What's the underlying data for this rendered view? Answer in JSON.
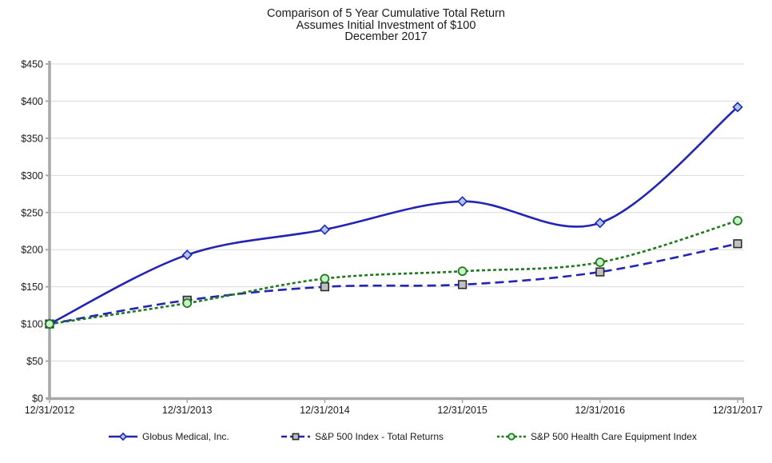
{
  "title": {
    "line1": "Comparison of 5 Year Cumulative Total Return",
    "line2": "Assumes Initial Investment of $100",
    "line3": "December 2017"
  },
  "chart_data": {
    "type": "line",
    "title": "Comparison of 5 Year Cumulative Total Return",
    "subtitle": "Assumes Initial Investment of $100",
    "date_label": "December 2017",
    "categories": [
      "12/31/2012",
      "12/31/2013",
      "12/31/2014",
      "12/31/2015",
      "12/31/2016",
      "12/31/2017"
    ],
    "series": [
      {
        "name": "Globus Medical, Inc.",
        "values": [
          100,
          193,
          227,
          265,
          236,
          392
        ],
        "line_color": "#2424b2",
        "line_style": "solid",
        "marker": "diamond",
        "marker_fill": "#a9c9f0",
        "marker_stroke": "#2424b2"
      },
      {
        "name": "S&P 500 Index - Total Returns",
        "values": [
          100,
          132,
          150,
          153,
          170,
          208
        ],
        "line_color": "#2424b2",
        "line_style": "dashed",
        "marker": "square",
        "marker_fill": "#c0c0c0",
        "marker_stroke": "#2b2b2b"
      },
      {
        "name": "S&P 500 Health Care Equipment Index",
        "values": [
          100,
          128,
          161,
          171,
          183,
          239
        ],
        "line_color": "#1f7a1f",
        "line_style": "shortdash",
        "marker": "circle",
        "marker_fill": "#c9f2cb",
        "marker_stroke": "#1f7a1f"
      }
    ],
    "ylim": [
      0,
      450
    ],
    "y_ticks": [
      "$0",
      "$50",
      "$100",
      "$150",
      "$200",
      "$250",
      "$300",
      "$350",
      "$400",
      "$450"
    ],
    "grid": "horizontal",
    "smoothed": true,
    "legend_position": "bottom",
    "axis_color": "#a8a8a8",
    "grid_color": "#d9d9d9",
    "text_color": "#1a1a1a"
  }
}
